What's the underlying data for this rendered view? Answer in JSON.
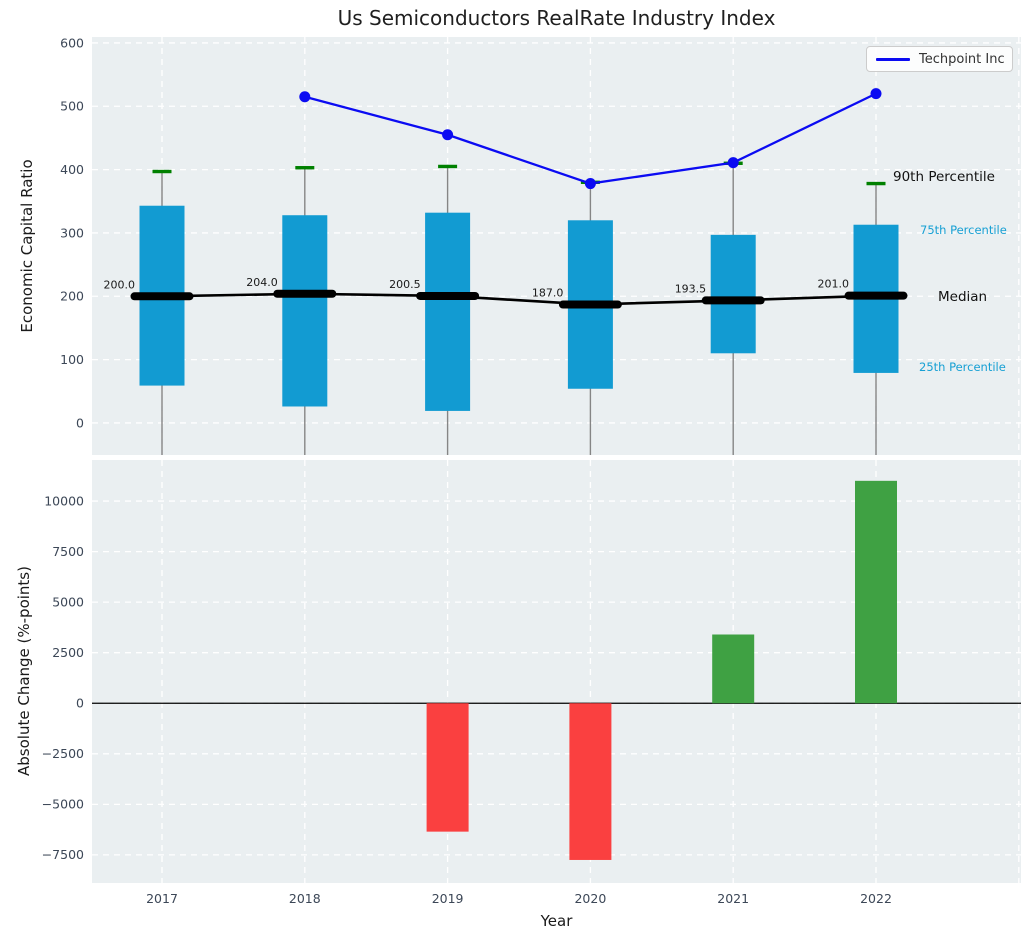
{
  "title": "Us Semiconductors RealRate Industry Index",
  "xlabel": "Year",
  "legend": {
    "label": "Techpoint Inc"
  },
  "annotations": {
    "p90": "90th Percentile",
    "p75": "75th Percentile",
    "median": "Median",
    "p25": "25th Percentile"
  },
  "colors": {
    "figure_bg": "#ffffff",
    "panel_bg": "#eaeff1",
    "grid": "#ffffff",
    "iqr_bar": "#129bd2",
    "techpoint_line": "#0b0bf2",
    "p90_cap": "#008000",
    "whisker": "#858585",
    "median": "#000000",
    "negative_bar": "#fa4040",
    "positive_bar": "#3fa143",
    "tick_text": "#3c4757",
    "percentile_label_blue": "#17a0d4"
  },
  "chart_data": [
    {
      "type": "box-line",
      "panel": "top",
      "title": "Us Semiconductors RealRate Industry Index",
      "ylabel": "Economic Capital Ratio",
      "ylim": [
        -50.6,
        609.4
      ],
      "yticks": [
        0,
        100,
        200,
        300,
        400,
        500,
        600
      ],
      "grid": true,
      "legend_position": "upper right",
      "x": [
        2017,
        2018,
        2019,
        2020,
        2021,
        2022
      ],
      "series": [
        {
          "name": "90th Percentile",
          "values": [
            397,
            403,
            405,
            380,
            410,
            378
          ]
        },
        {
          "name": "75th Percentile",
          "values": [
            343,
            328,
            332,
            320,
            297,
            313
          ]
        },
        {
          "name": "Median",
          "values": [
            200.0,
            204.0,
            200.5,
            187.0,
            193.5,
            201.0
          ]
        },
        {
          "name": "25th Percentile",
          "values": [
            59,
            26,
            19,
            54,
            110,
            79
          ]
        },
        {
          "name": "Techpoint Inc",
          "values": [
            null,
            515,
            455,
            378,
            411,
            520
          ]
        }
      ],
      "median_labels": [
        "200.0",
        "204.0",
        "200.5",
        "187.0",
        "193.5",
        "201.0"
      ]
    },
    {
      "type": "bar",
      "panel": "bottom",
      "ylabel": "Absolute Change (%-points)",
      "xlabel": "Year",
      "ylim": [
        -8890,
        12030
      ],
      "yticks": [
        -7500,
        -5000,
        -2500,
        0,
        2500,
        5000,
        7500,
        10000
      ],
      "grid": true,
      "categories": [
        2017,
        2018,
        2019,
        2020,
        2021,
        2022
      ],
      "values": [
        null,
        null,
        -6350,
        -7750,
        3400,
        11000
      ]
    }
  ]
}
